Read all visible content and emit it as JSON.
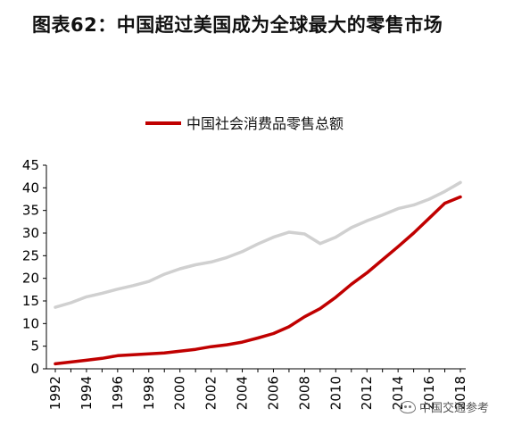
{
  "title": "图表62：中国超过美国成为全球最大的零售市场",
  "watermark": "中国交通参考",
  "colors": {
    "series_red": "#c00000",
    "series_gray": "#d0d0d0",
    "axis": "#000000"
  },
  "chart_data": {
    "type": "line",
    "xlabel": "",
    "ylabel": "",
    "ylim": [
      0,
      45
    ],
    "yticks": [
      0,
      5,
      10,
      15,
      20,
      25,
      30,
      35,
      40,
      45
    ],
    "x": [
      1992,
      1993,
      1994,
      1995,
      1996,
      1997,
      1998,
      1999,
      2000,
      2001,
      2002,
      2003,
      2004,
      2005,
      2006,
      2007,
      2008,
      2009,
      2010,
      2011,
      2012,
      2013,
      2014,
      2015,
      2016,
      2017,
      2018
    ],
    "xtick_labels": [
      "1992",
      "1994",
      "1996",
      "1998",
      "2000",
      "2002",
      "2004",
      "2006",
      "2008",
      "2010",
      "2012",
      "2014",
      "2016",
      "2018"
    ],
    "grid": false,
    "legend_position": "top-center",
    "series": [
      {
        "name": "中国社会消费品零售总额",
        "color": "#c00000",
        "values": [
          1.1,
          1.5,
          1.9,
          2.3,
          2.9,
          3.1,
          3.3,
          3.5,
          3.9,
          4.3,
          4.9,
          5.3,
          5.9,
          6.8,
          7.8,
          9.3,
          11.5,
          13.3,
          15.8,
          18.7,
          21.2,
          24.1,
          27.0,
          30.0,
          33.3,
          36.6,
          38.0
        ],
        "in_legend": true
      },
      {
        "name": "",
        "color": "#d0d0d0",
        "values": [
          13.6,
          14.6,
          15.9,
          16.7,
          17.6,
          18.4,
          19.3,
          20.9,
          22.1,
          23.0,
          23.6,
          24.6,
          25.9,
          27.6,
          29.1,
          30.2,
          29.8,
          27.7,
          29.1,
          31.2,
          32.7,
          34.0,
          35.4,
          36.2,
          37.5,
          39.2,
          41.2
        ],
        "in_legend": false
      }
    ]
  }
}
